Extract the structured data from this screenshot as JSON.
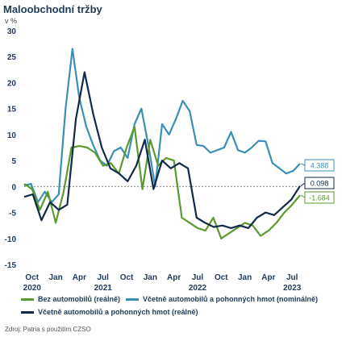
{
  "title": "Maloobchodní tržby",
  "unit": "v %",
  "source": "Zdroj: Patria s použitím CZSO",
  "colors": {
    "green": "#5a9a2e",
    "teal": "#3a8fb7",
    "navy": "#0f2a4a"
  },
  "chart_data": {
    "type": "line",
    "ylim": [
      -15,
      30
    ],
    "yticks": [
      -15,
      -10,
      -5,
      0,
      5,
      10,
      15,
      20,
      25,
      30
    ],
    "x_month_ticks": [
      "Oct",
      "Jan",
      "Apr",
      "Jul",
      "Oct",
      "Jan",
      "Apr",
      "Jul",
      "Oct",
      "Jan",
      "Apr",
      "Jul"
    ],
    "x_year_ticks": [
      "2020",
      "2021",
      "2022",
      "2023"
    ],
    "x_start": "2020-09",
    "x_end": "2023-08",
    "series": [
      {
        "name": "Včetně automobilů a pohonných hmot (nominálně)",
        "color": "teal",
        "end_label": "4.388",
        "values": [
          0.2,
          0.5,
          -3.0,
          -1.0,
          -3.0,
          -1.5,
          15.0,
          26.5,
          17.0,
          11.5,
          8.0,
          5.0,
          4.0,
          6.8,
          7.5,
          5.5,
          12.0,
          15.0,
          8.0,
          0.0,
          12.0,
          10.0,
          13.0,
          16.5,
          14.5,
          8.0,
          7.8,
          6.5,
          7.0,
          7.5,
          10.5,
          7.0,
          6.5,
          7.5,
          8.8,
          8.7,
          4.5,
          3.5,
          2.5,
          3.0,
          4.388
        ]
      },
      {
        "name": "Bez automobilů (reálně)",
        "color": "green",
        "end_label": "-1.684",
        "values": [
          0.5,
          -0.5,
          -4.5,
          -1.0,
          -7.0,
          -1.0,
          7.5,
          7.8,
          7.5,
          6.5,
          4.0,
          4.5,
          2.5,
          7.5,
          11.5,
          -0.5,
          9.0,
          4.0,
          5.5,
          5.0,
          -6.0,
          -7.0,
          -8.0,
          -8.5,
          -6.0,
          -10.0,
          -9.0,
          -8.0,
          -7.0,
          -7.5,
          -9.5,
          -8.5,
          -7.0,
          -5.0,
          -3.5,
          -1.684
        ]
      },
      {
        "name": "Včetně automobilů a pohonných hmot (reálně)",
        "color": "navy",
        "end_label": "0.098",
        "values": [
          -2.0,
          -1.5,
          -6.5,
          -3.0,
          -4.5,
          -3.5,
          13.0,
          22.0,
          14.0,
          7.5,
          3.5,
          2.5,
          1.0,
          4.0,
          9.0,
          -0.5,
          5.0,
          3.5,
          4.5,
          3.5,
          -6.0,
          -7.0,
          -7.8,
          -7.5,
          -8.0,
          -7.5,
          -8.0,
          -6.0,
          -5.0,
          -5.5,
          -4.0,
          -2.5,
          0.098
        ]
      }
    ]
  }
}
